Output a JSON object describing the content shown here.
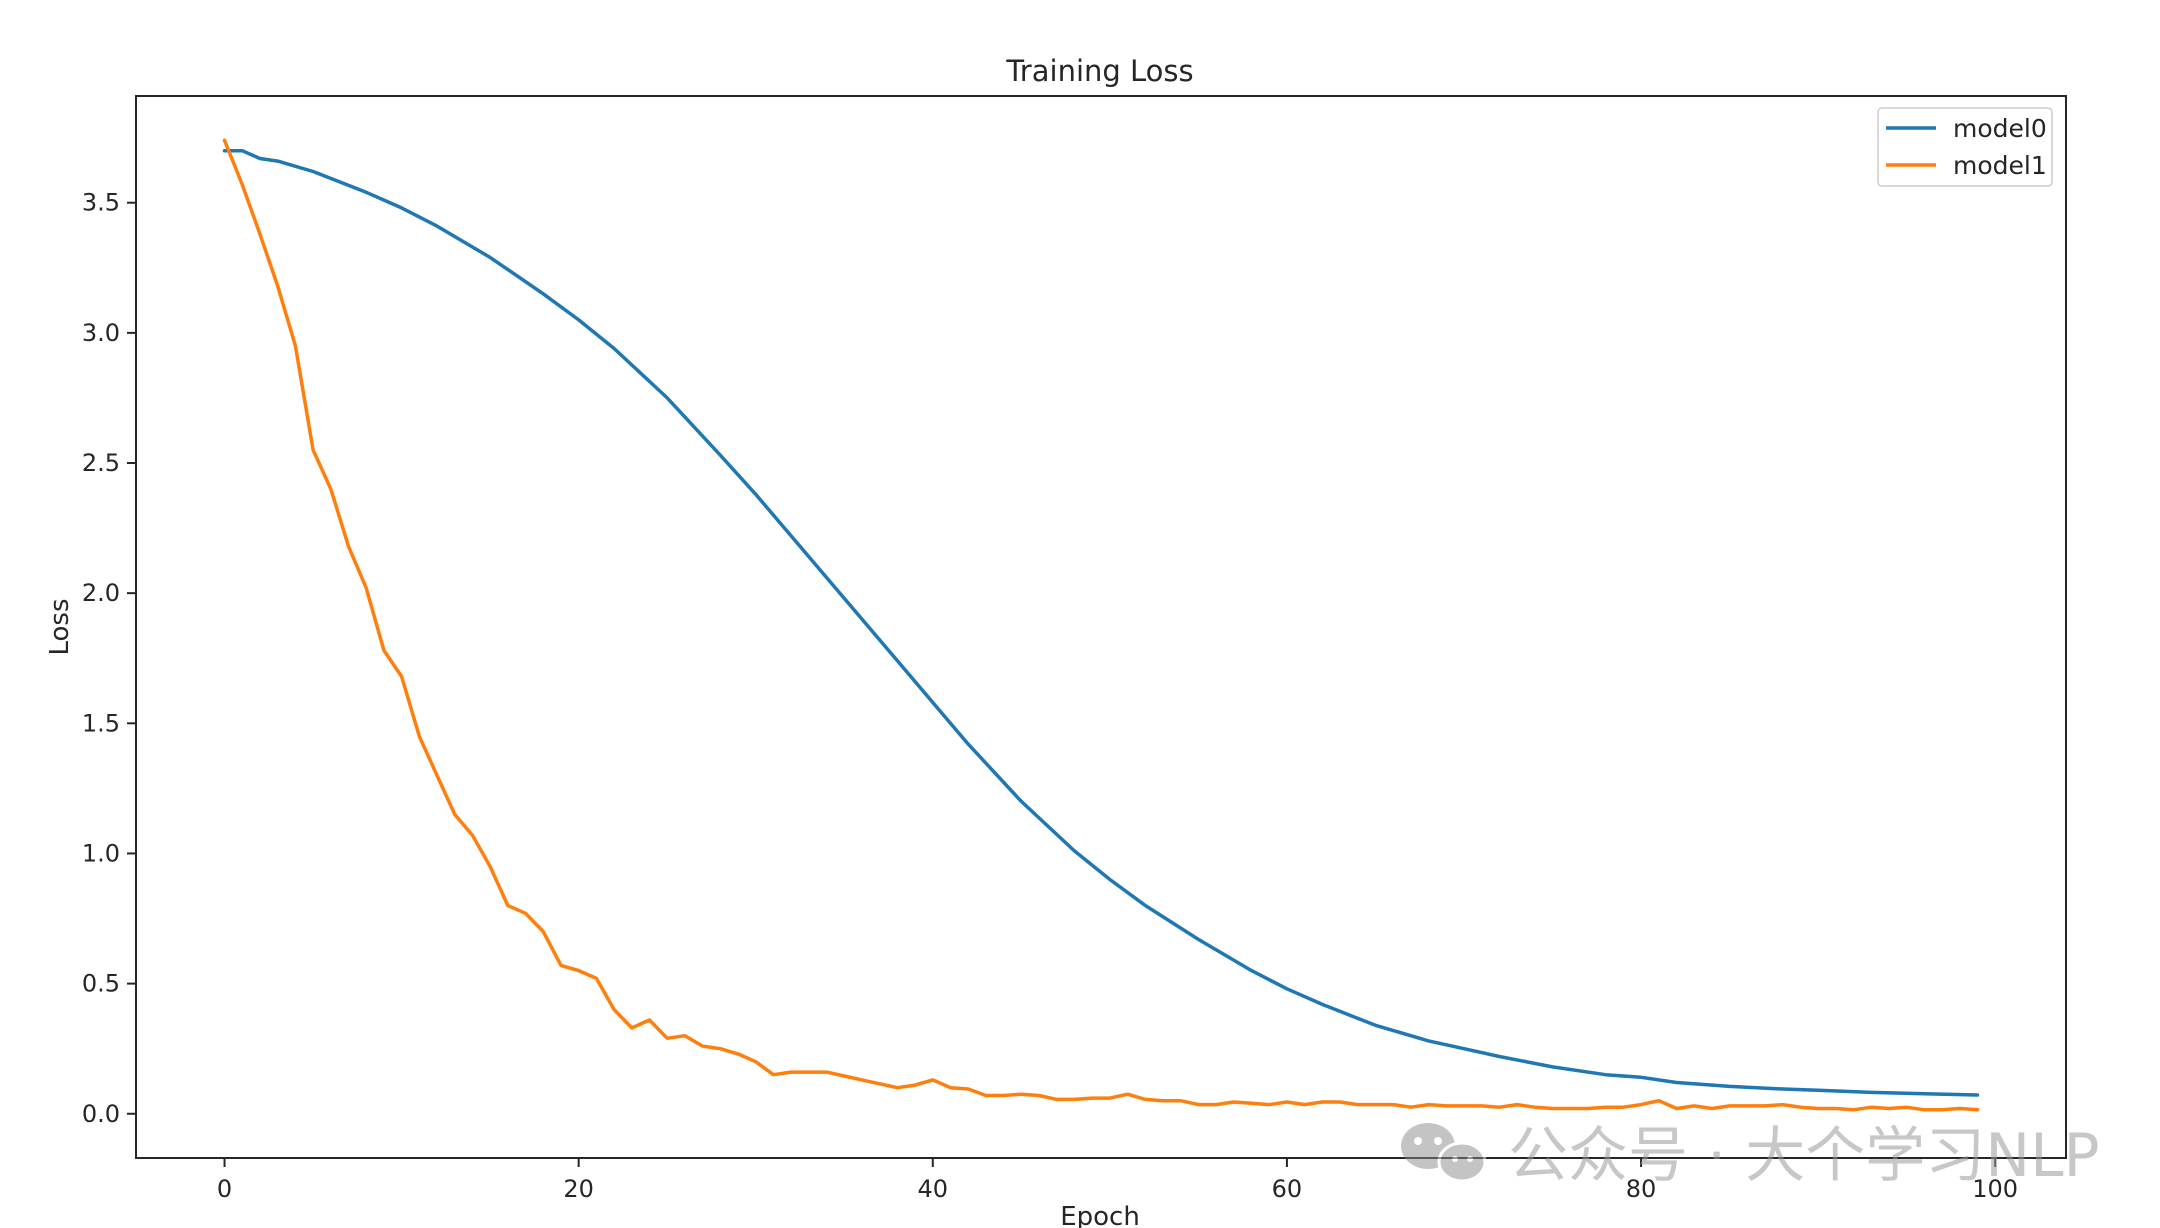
{
  "chart_data": {
    "type": "line",
    "title": "Training Loss",
    "xlabel": "Epoch",
    "ylabel": "Loss",
    "xlim": [
      -5,
      104
    ],
    "ylim": [
      -0.17,
      3.91
    ],
    "xticks": [
      0,
      20,
      40,
      60,
      80,
      100
    ],
    "yticks": [
      0.0,
      0.5,
      1.0,
      1.5,
      2.0,
      2.5,
      3.0,
      3.5
    ],
    "xtick_labels": [
      "0",
      "20",
      "40",
      "60",
      "80",
      "100"
    ],
    "ytick_labels": [
      "0.0",
      "0.5",
      "1.0",
      "1.5",
      "2.0",
      "2.5",
      "3.0",
      "3.5"
    ],
    "grid": false,
    "legend_position": "top-right",
    "series": [
      {
        "name": "model0",
        "color": "#1f77b4",
        "points": [
          [
            0,
            3.7
          ],
          [
            1,
            3.7
          ],
          [
            2,
            3.67
          ],
          [
            3,
            3.66
          ],
          [
            5,
            3.62
          ],
          [
            8,
            3.54
          ],
          [
            10,
            3.48
          ],
          [
            12,
            3.41
          ],
          [
            15,
            3.29
          ],
          [
            18,
            3.15
          ],
          [
            20,
            3.05
          ],
          [
            22,
            2.94
          ],
          [
            25,
            2.75
          ],
          [
            28,
            2.53
          ],
          [
            30,
            2.38
          ],
          [
            32,
            2.22
          ],
          [
            35,
            1.98
          ],
          [
            38,
            1.74
          ],
          [
            40,
            1.58
          ],
          [
            42,
            1.42
          ],
          [
            45,
            1.2
          ],
          [
            48,
            1.01
          ],
          [
            50,
            0.9
          ],
          [
            52,
            0.8
          ],
          [
            55,
            0.67
          ],
          [
            58,
            0.55
          ],
          [
            60,
            0.48
          ],
          [
            62,
            0.42
          ],
          [
            65,
            0.34
          ],
          [
            68,
            0.28
          ],
          [
            70,
            0.25
          ],
          [
            72,
            0.22
          ],
          [
            75,
            0.18
          ],
          [
            78,
            0.15
          ],
          [
            80,
            0.14
          ],
          [
            82,
            0.12
          ],
          [
            85,
            0.105
          ],
          [
            88,
            0.095
          ],
          [
            90,
            0.09
          ],
          [
            93,
            0.082
          ],
          [
            96,
            0.077
          ],
          [
            99,
            0.072
          ]
        ]
      },
      {
        "name": "model1",
        "color": "#ff7f0e",
        "points": [
          [
            0,
            3.74
          ],
          [
            1,
            3.57
          ],
          [
            2,
            3.38
          ],
          [
            3,
            3.18
          ],
          [
            4,
            2.95
          ],
          [
            5,
            2.55
          ],
          [
            6,
            2.4
          ],
          [
            7,
            2.18
          ],
          [
            8,
            2.02
          ],
          [
            9,
            1.78
          ],
          [
            10,
            1.68
          ],
          [
            11,
            1.45
          ],
          [
            12,
            1.3
          ],
          [
            13,
            1.15
          ],
          [
            14,
            1.07
          ],
          [
            15,
            0.95
          ],
          [
            16,
            0.8
          ],
          [
            17,
            0.77
          ],
          [
            18,
            0.7
          ],
          [
            19,
            0.57
          ],
          [
            20,
            0.55
          ],
          [
            21,
            0.52
          ],
          [
            22,
            0.4
          ],
          [
            23,
            0.33
          ],
          [
            24,
            0.36
          ],
          [
            25,
            0.29
          ],
          [
            26,
            0.3
          ],
          [
            27,
            0.26
          ],
          [
            28,
            0.25
          ],
          [
            29,
            0.23
          ],
          [
            30,
            0.2
          ],
          [
            31,
            0.15
          ],
          [
            32,
            0.16
          ],
          [
            33,
            0.16
          ],
          [
            34,
            0.16
          ],
          [
            35,
            0.145
          ],
          [
            36,
            0.13
          ],
          [
            37,
            0.115
          ],
          [
            38,
            0.1
          ],
          [
            39,
            0.11
          ],
          [
            40,
            0.13
          ],
          [
            41,
            0.1
          ],
          [
            42,
            0.095
          ],
          [
            43,
            0.07
          ],
          [
            44,
            0.07
          ],
          [
            45,
            0.075
          ],
          [
            46,
            0.07
          ],
          [
            47,
            0.055
          ],
          [
            48,
            0.055
          ],
          [
            49,
            0.06
          ],
          [
            50,
            0.06
          ],
          [
            51,
            0.075
          ],
          [
            52,
            0.055
          ],
          [
            53,
            0.05
          ],
          [
            54,
            0.05
          ],
          [
            55,
            0.035
          ],
          [
            56,
            0.035
          ],
          [
            57,
            0.045
          ],
          [
            58,
            0.04
          ],
          [
            59,
            0.035
          ],
          [
            60,
            0.045
          ],
          [
            61,
            0.035
          ],
          [
            62,
            0.045
          ],
          [
            63,
            0.045
          ],
          [
            64,
            0.035
          ],
          [
            65,
            0.035
          ],
          [
            66,
            0.035
          ],
          [
            67,
            0.025
          ],
          [
            68,
            0.035
          ],
          [
            69,
            0.03
          ],
          [
            70,
            0.03
          ],
          [
            71,
            0.03
          ],
          [
            72,
            0.025
          ],
          [
            73,
            0.035
          ],
          [
            74,
            0.025
          ],
          [
            75,
            0.02
          ],
          [
            76,
            0.02
          ],
          [
            77,
            0.02
          ],
          [
            78,
            0.025
          ],
          [
            79,
            0.025
          ],
          [
            80,
            0.035
          ],
          [
            81,
            0.05
          ],
          [
            82,
            0.02
          ],
          [
            83,
            0.03
          ],
          [
            84,
            0.02
          ],
          [
            85,
            0.03
          ],
          [
            86,
            0.03
          ],
          [
            87,
            0.03
          ],
          [
            88,
            0.035
          ],
          [
            89,
            0.025
          ],
          [
            90,
            0.02
          ],
          [
            91,
            0.02
          ],
          [
            92,
            0.015
          ],
          [
            93,
            0.025
          ],
          [
            94,
            0.02
          ],
          [
            95,
            0.025
          ],
          [
            96,
            0.015
          ],
          [
            97,
            0.015
          ],
          [
            98,
            0.02
          ],
          [
            99,
            0.015
          ]
        ]
      }
    ]
  },
  "watermark": {
    "text": "公众号 · 大个学习NLP",
    "icon": "wechat-icon"
  }
}
